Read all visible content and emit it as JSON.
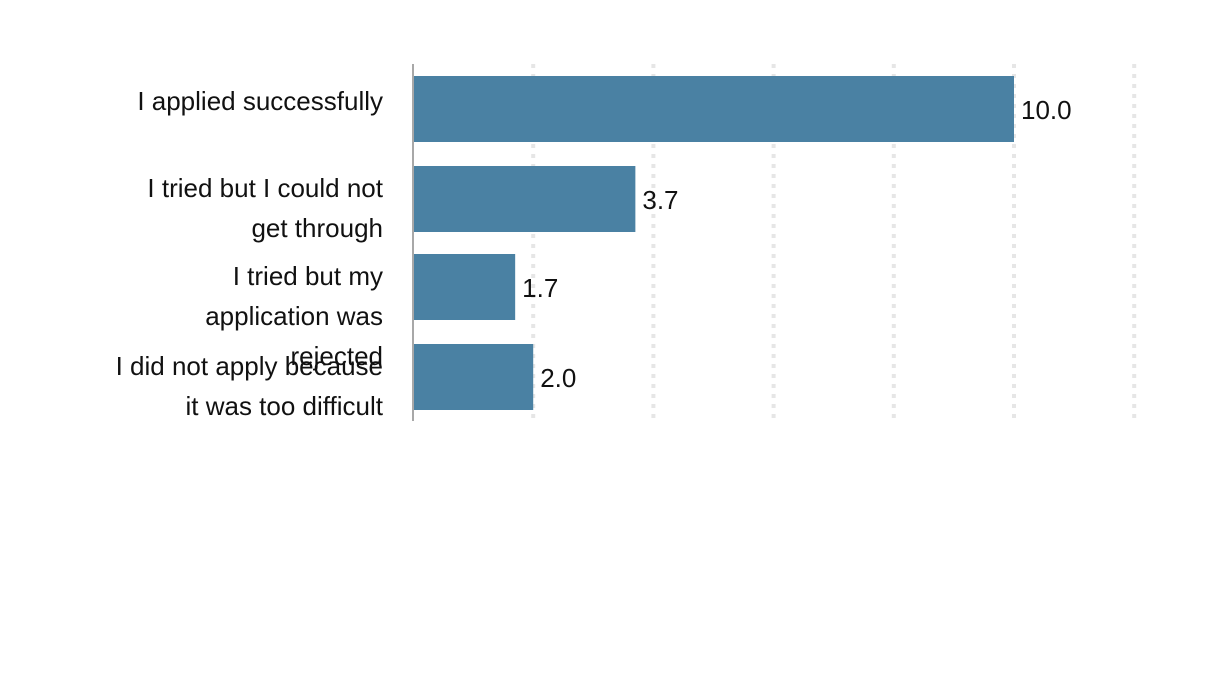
{
  "chart_data": {
    "type": "bar",
    "orientation": "horizontal",
    "categories": [
      "I applied successfully",
      "I tried but I could not get through",
      "I tried but my application was rejected",
      "I did not apply because it was too difficult"
    ],
    "category_lines": [
      [
        "I applied successfully"
      ],
      [
        "I tried but I could not",
        "get through"
      ],
      [
        "I tried but my",
        "application was",
        "rejected"
      ],
      [
        "I did not apply because",
        "it was too difficult"
      ]
    ],
    "values": [
      10.0,
      3.7,
      1.7,
      2.0
    ],
    "value_labels": [
      "10.0",
      "3.7",
      "1.7",
      "2.0"
    ],
    "title": "",
    "xlabel": "",
    "ylabel": "",
    "xlim": [
      0,
      12
    ],
    "grid": true,
    "grid_style": "dotted",
    "legend": "none",
    "colors": {
      "bar": "#4a81a3",
      "grid": "#e6e6e6",
      "axis": "#a8a8a8",
      "text": "#111111"
    }
  }
}
